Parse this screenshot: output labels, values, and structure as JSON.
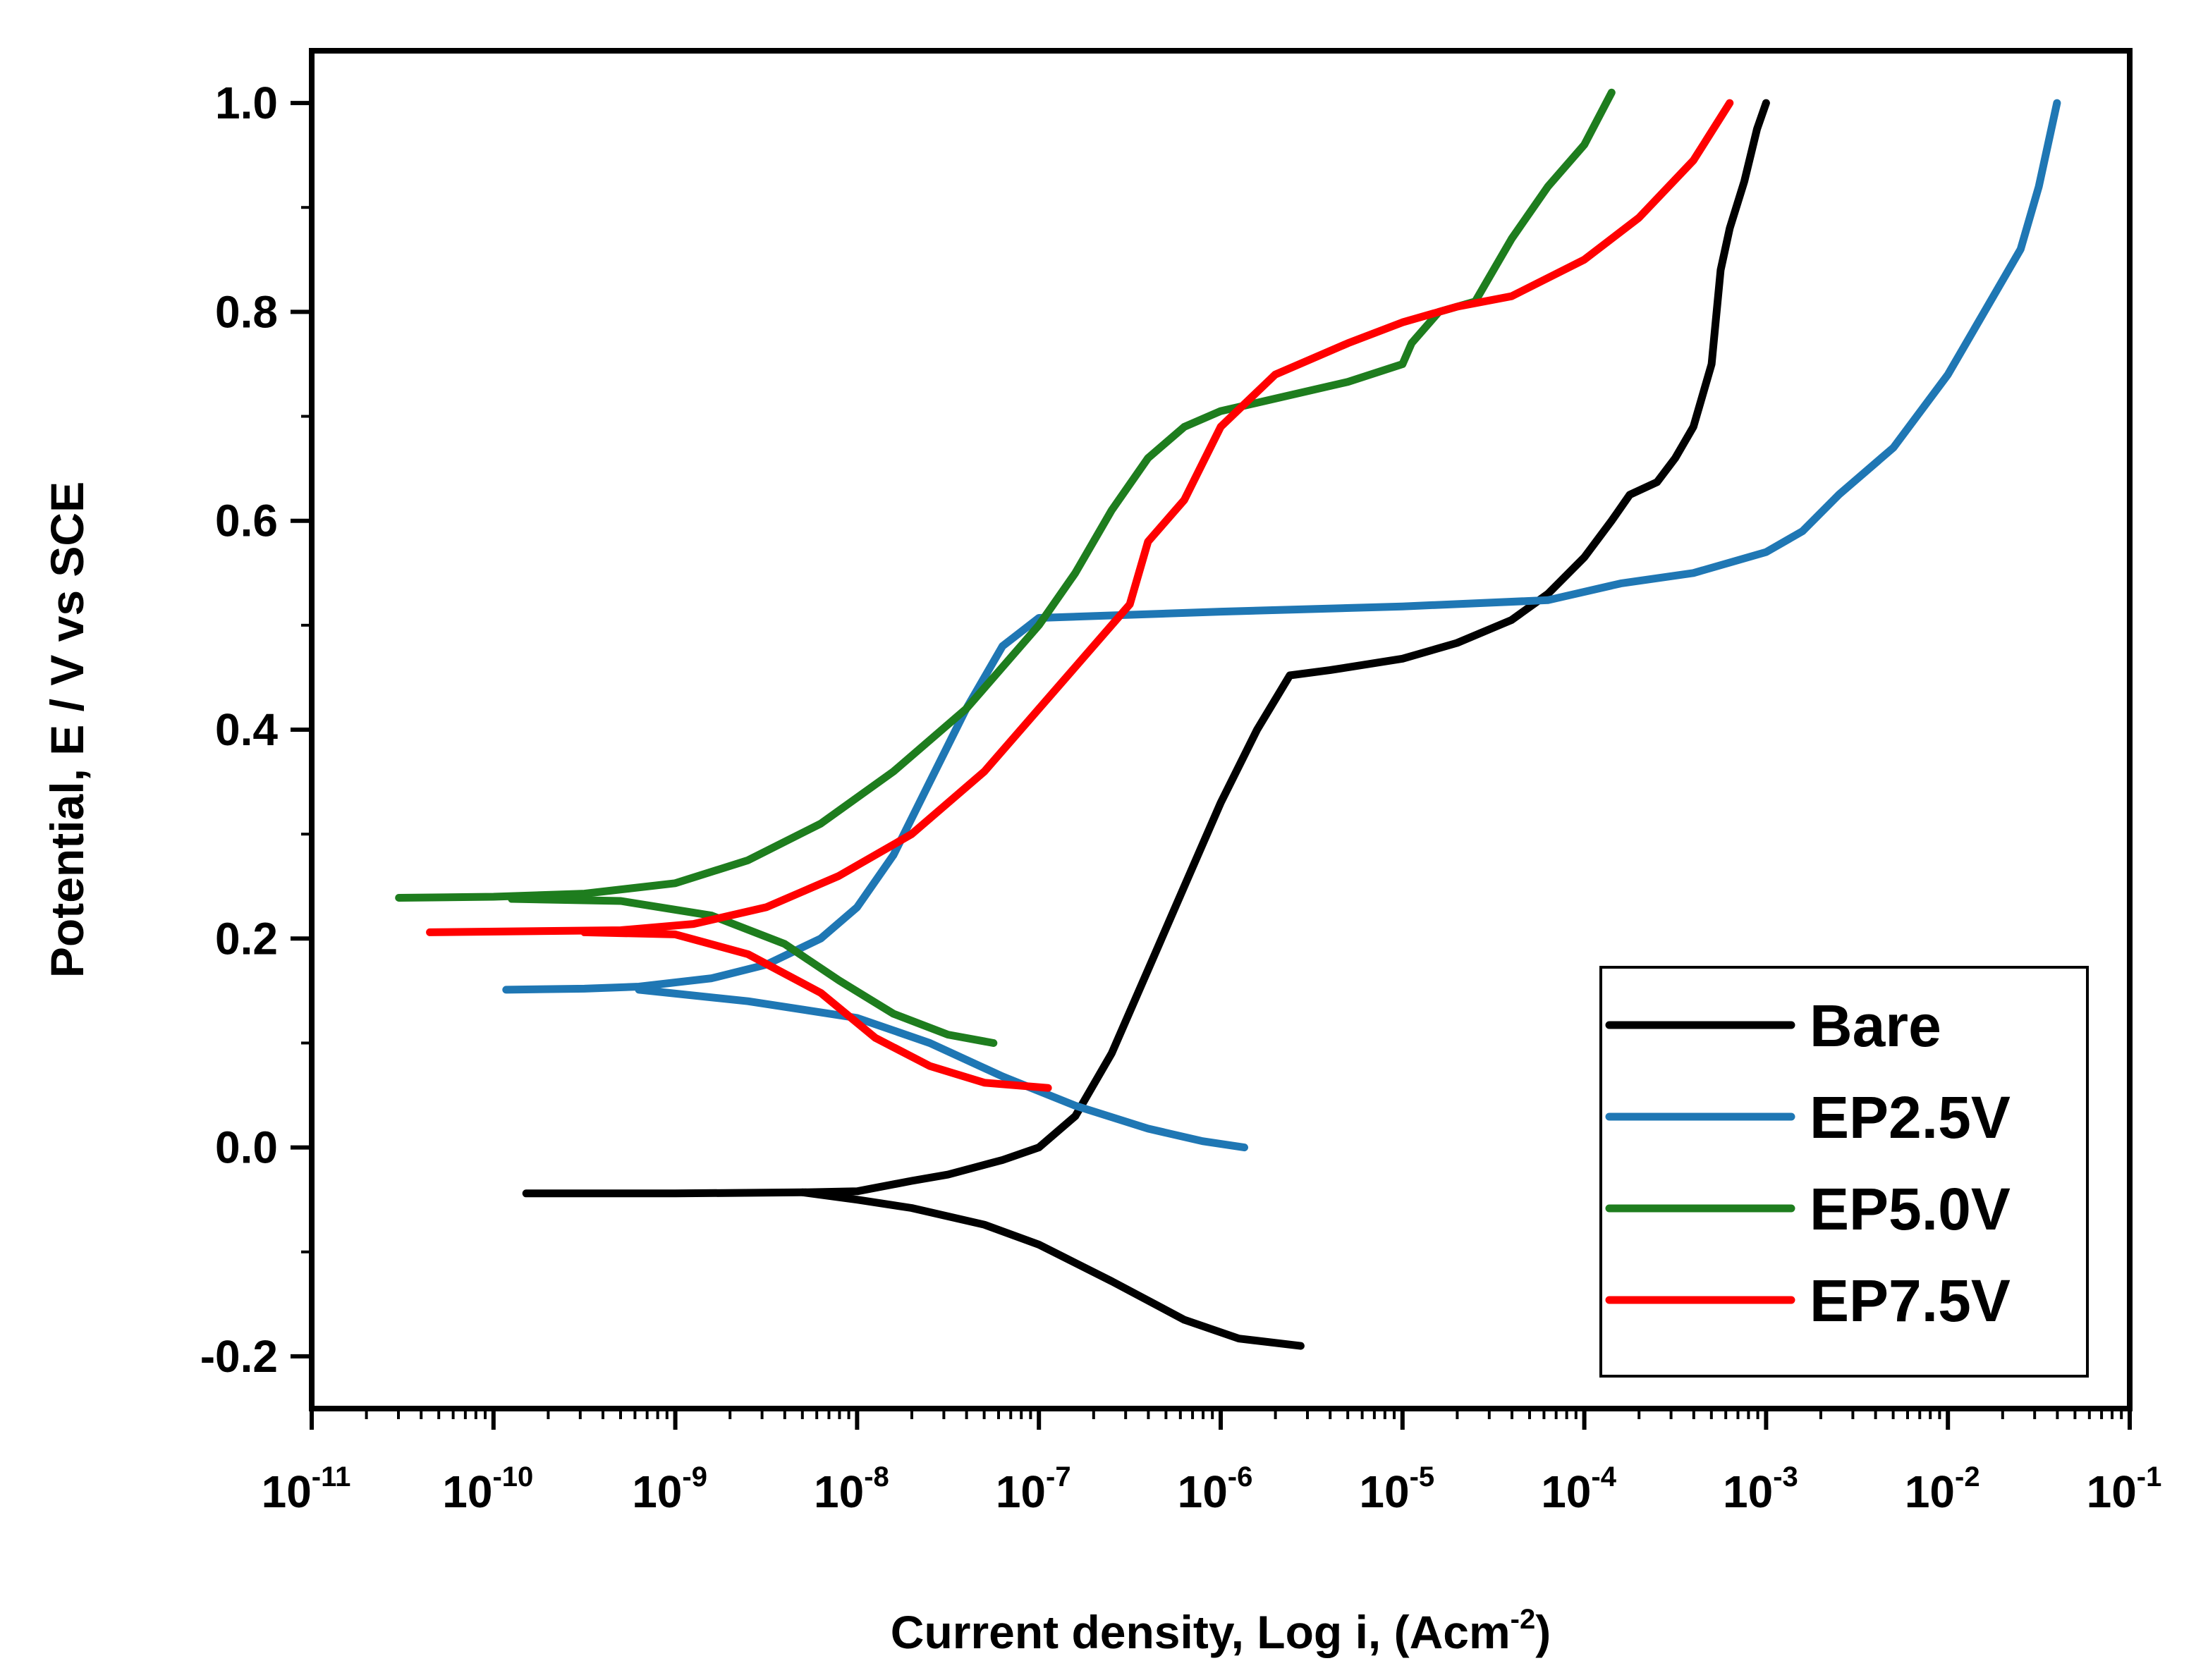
{
  "chart_data": {
    "type": "line",
    "title": "",
    "xscale": "log",
    "xlabel": {
      "main": "Current density, Log i, (Acm",
      "sup": "-2",
      "end": ")"
    },
    "ylabel": "Potential, E / V vs SCE",
    "xlim_exp": [
      -11,
      -1
    ],
    "ylim": [
      -0.25,
      1.05
    ],
    "x_ticks": [
      {
        "base": "10",
        "exp": "-11",
        "value": -11
      },
      {
        "base": "10",
        "exp": "-10",
        "value": -10
      },
      {
        "base": "10",
        "exp": "-9",
        "value": -9
      },
      {
        "base": "10",
        "exp": "-8",
        "value": -8
      },
      {
        "base": "10",
        "exp": "-7",
        "value": -7
      },
      {
        "base": "10",
        "exp": "-6",
        "value": -6
      },
      {
        "base": "10",
        "exp": "-5",
        "value": -5
      },
      {
        "base": "10",
        "exp": "-4",
        "value": -4
      },
      {
        "base": "10",
        "exp": "-3",
        "value": -3
      },
      {
        "base": "10",
        "exp": "-2",
        "value": -2
      },
      {
        "base": "10",
        "exp": "-1",
        "value": -1
      }
    ],
    "y_ticks": [
      {
        "label": "-0.2",
        "value": -0.2
      },
      {
        "label": "0.0",
        "value": 0.0
      },
      {
        "label": "0.2",
        "value": 0.2
      },
      {
        "label": "0.4",
        "value": 0.4
      },
      {
        "label": "0.6",
        "value": 0.6
      },
      {
        "label": "0.8",
        "value": 0.8
      },
      {
        "label": "1.0",
        "value": 1.0
      }
    ],
    "legend_position": "bottom-right",
    "series": [
      {
        "name": "Bare",
        "color": "#000000",
        "points_log10i_E": [
          [
            -9.82,
            -0.044
          ],
          [
            -9.0,
            -0.044
          ],
          [
            -8.3,
            -0.043
          ],
          [
            -8.0,
            -0.042
          ],
          [
            -7.7,
            -0.032
          ],
          [
            -7.5,
            -0.026
          ],
          [
            -7.2,
            -0.012
          ],
          [
            -7.0,
            0.0
          ],
          [
            -6.8,
            0.03
          ],
          [
            -6.6,
            0.09
          ],
          [
            -6.4,
            0.17
          ],
          [
            -6.2,
            0.25
          ],
          [
            -6.0,
            0.33
          ],
          [
            -5.8,
            0.4
          ],
          [
            -5.62,
            0.452
          ],
          [
            -5.4,
            0.457
          ],
          [
            -5.0,
            0.468
          ],
          [
            -4.7,
            0.483
          ],
          [
            -4.4,
            0.505
          ],
          [
            -4.2,
            0.53
          ],
          [
            -4.0,
            0.565
          ],
          [
            -3.85,
            0.6
          ],
          [
            -3.75,
            0.625
          ],
          [
            -3.6,
            0.637
          ],
          [
            -3.5,
            0.66
          ],
          [
            -3.4,
            0.69
          ],
          [
            -3.3,
            0.75
          ],
          [
            -3.25,
            0.84
          ],
          [
            -3.2,
            0.88
          ],
          [
            -3.12,
            0.925
          ],
          [
            -3.05,
            0.975
          ],
          [
            -3.0,
            1.0
          ]
        ],
        "points_cathodic_log10i_E": [
          [
            -8.3,
            -0.043
          ],
          [
            -8.0,
            -0.05
          ],
          [
            -7.7,
            -0.058
          ],
          [
            -7.3,
            -0.074
          ],
          [
            -7.0,
            -0.093
          ],
          [
            -6.6,
            -0.128
          ],
          [
            -6.2,
            -0.165
          ],
          [
            -5.9,
            -0.183
          ],
          [
            -5.56,
            -0.19
          ]
        ]
      },
      {
        "name": "EP2.5V",
        "color": "#1f77b4",
        "points_log10i_E": [
          [
            -9.93,
            0.151
          ],
          [
            -9.5,
            0.152
          ],
          [
            -9.2,
            0.154
          ],
          [
            -8.8,
            0.162
          ],
          [
            -8.5,
            0.175
          ],
          [
            -8.2,
            0.2
          ],
          [
            -8.0,
            0.23
          ],
          [
            -7.8,
            0.28
          ],
          [
            -7.6,
            0.35
          ],
          [
            -7.4,
            0.42
          ],
          [
            -7.2,
            0.48
          ],
          [
            -7.0,
            0.507
          ],
          [
            -6.0,
            0.513
          ],
          [
            -5.0,
            0.518
          ],
          [
            -4.2,
            0.524
          ],
          [
            -3.8,
            0.54
          ],
          [
            -3.4,
            0.55
          ],
          [
            -3.0,
            0.57
          ],
          [
            -2.8,
            0.59
          ],
          [
            -2.6,
            0.625
          ],
          [
            -2.3,
            0.67
          ],
          [
            -2.0,
            0.74
          ],
          [
            -1.8,
            0.8
          ],
          [
            -1.6,
            0.86
          ],
          [
            -1.5,
            0.92
          ],
          [
            -1.4,
            1.0
          ]
        ],
        "points_cathodic_log10i_E": [
          [
            -9.2,
            0.151
          ],
          [
            -8.6,
            0.14
          ],
          [
            -8.0,
            0.124
          ],
          [
            -7.6,
            0.1
          ],
          [
            -7.2,
            0.068
          ],
          [
            -6.8,
            0.04
          ],
          [
            -6.4,
            0.018
          ],
          [
            -6.1,
            0.006
          ],
          [
            -5.87,
            0.0
          ]
        ]
      },
      {
        "name": "EP5.0V",
        "color": "#1e7d1e",
        "points_log10i_E": [
          [
            -10.52,
            0.239
          ],
          [
            -10.0,
            0.24
          ],
          [
            -9.5,
            0.243
          ],
          [
            -9.0,
            0.253
          ],
          [
            -8.6,
            0.275
          ],
          [
            -8.2,
            0.31
          ],
          [
            -7.8,
            0.36
          ],
          [
            -7.4,
            0.42
          ],
          [
            -7.0,
            0.5
          ],
          [
            -6.8,
            0.55
          ],
          [
            -6.6,
            0.61
          ],
          [
            -6.4,
            0.66
          ],
          [
            -6.2,
            0.69
          ],
          [
            -6.0,
            0.705
          ],
          [
            -5.7,
            0.717
          ],
          [
            -5.3,
            0.733
          ],
          [
            -5.0,
            0.75
          ],
          [
            -4.95,
            0.77
          ],
          [
            -4.8,
            0.8
          ],
          [
            -4.6,
            0.81
          ],
          [
            -4.4,
            0.87
          ],
          [
            -4.2,
            0.92
          ],
          [
            -4.0,
            0.96
          ],
          [
            -3.85,
            1.01
          ]
        ],
        "points_cathodic_log10i_E": [
          [
            -9.9,
            0.238
          ],
          [
            -9.3,
            0.236
          ],
          [
            -8.8,
            0.222
          ],
          [
            -8.4,
            0.195
          ],
          [
            -8.1,
            0.16
          ],
          [
            -7.8,
            0.128
          ],
          [
            -7.5,
            0.108
          ],
          [
            -7.25,
            0.1
          ]
        ]
      },
      {
        "name": "EP7.5V",
        "color": "#ff0000",
        "points_log10i_E": [
          [
            -10.35,
            0.206
          ],
          [
            -9.8,
            0.207
          ],
          [
            -9.3,
            0.208
          ],
          [
            -8.9,
            0.214
          ],
          [
            -8.5,
            0.23
          ],
          [
            -8.1,
            0.26
          ],
          [
            -7.7,
            0.3
          ],
          [
            -7.3,
            0.36
          ],
          [
            -7.0,
            0.42
          ],
          [
            -6.7,
            0.48
          ],
          [
            -6.5,
            0.52
          ],
          [
            -6.4,
            0.58
          ],
          [
            -6.2,
            0.62
          ],
          [
            -6.0,
            0.69
          ],
          [
            -5.7,
            0.74
          ],
          [
            -5.3,
            0.77
          ],
          [
            -5.0,
            0.79
          ],
          [
            -4.7,
            0.805
          ],
          [
            -4.4,
            0.815
          ],
          [
            -4.0,
            0.85
          ],
          [
            -3.7,
            0.89
          ],
          [
            -3.4,
            0.945
          ],
          [
            -3.2,
            1.0
          ]
        ],
        "points_cathodic_log10i_E": [
          [
            -9.5,
            0.206
          ],
          [
            -9.0,
            0.204
          ],
          [
            -8.6,
            0.185
          ],
          [
            -8.2,
            0.148
          ],
          [
            -7.9,
            0.105
          ],
          [
            -7.6,
            0.078
          ],
          [
            -7.3,
            0.062
          ],
          [
            -6.95,
            0.057
          ]
        ]
      }
    ]
  }
}
